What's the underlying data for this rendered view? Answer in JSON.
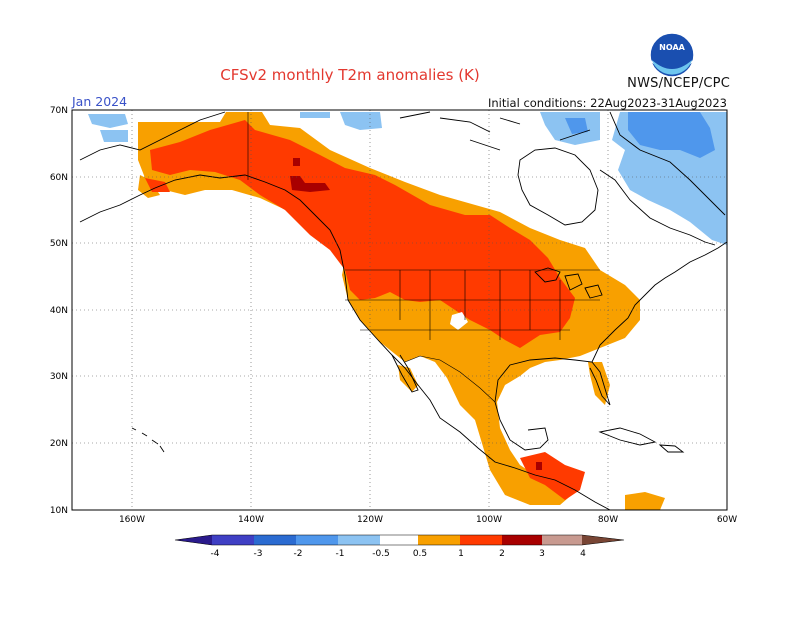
{
  "header": {
    "title": "CFSv2 monthly T2m anomalies (K)",
    "month": "Jan 2024",
    "initial_conditions": "Initial conditions: 22Aug2023-31Aug2023",
    "org": "NWS/NCEP/CPC",
    "logo_text": "NOAA"
  },
  "map": {
    "lat_labels": [
      "70N",
      "60N",
      "50N",
      "40N",
      "30N",
      "20N",
      "10N"
    ],
    "lon_labels": [
      "160W",
      "140W",
      "120W",
      "100W",
      "80W",
      "60W"
    ],
    "lon_range": [
      -170,
      -60
    ],
    "lat_range": [
      10,
      70
    ],
    "colors": {
      "land_outline": "#000000",
      "grid": "#555555"
    }
  },
  "legend": {
    "labels": [
      "-4",
      "-3",
      "-2",
      "-1",
      "-0.5",
      "0.5",
      "1",
      "2",
      "3",
      "4"
    ],
    "colors": [
      "#2a1a8c",
      "#3f3fc4",
      "#2b6bd1",
      "#4f97ec",
      "#8cc3f2",
      "#ffffff",
      "#f8a000",
      "#ff3a00",
      "#a80000",
      "#c89a90",
      "#784534"
    ]
  }
}
